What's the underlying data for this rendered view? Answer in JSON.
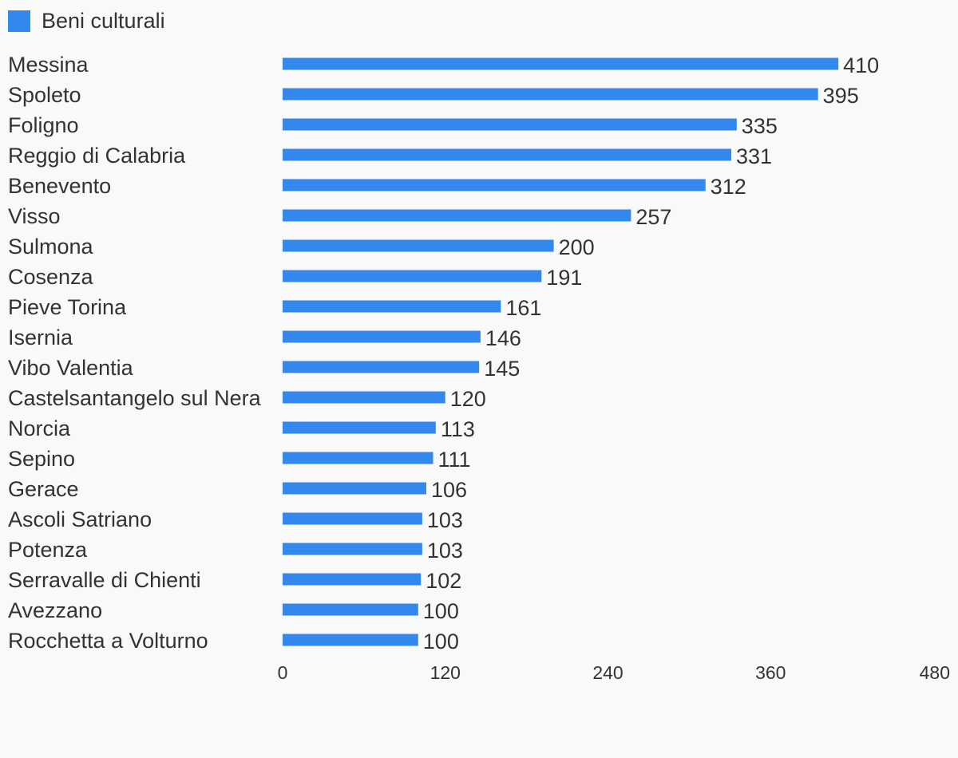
{
  "chart_data": {
    "type": "bar",
    "orientation": "horizontal",
    "categories": [
      "Messina",
      "Spoleto",
      "Foligno",
      "Reggio di Calabria",
      "Benevento",
      "Visso",
      "Sulmona",
      "Cosenza",
      "Pieve Torina",
      "Isernia",
      "Vibo Valentia",
      "Castelsantangelo sul Nera",
      "Norcia",
      "Sepino",
      "Gerace",
      "Ascoli Satriano",
      "Potenza",
      "Serravalle di Chienti",
      "Avezzano",
      "Rocchetta a Volturno"
    ],
    "series": [
      {
        "name": "Beni culturali",
        "color": "#3388ee",
        "values": [
          410,
          395,
          335,
          331,
          312,
          257,
          200,
          191,
          161,
          146,
          145,
          120,
          113,
          111,
          106,
          103,
          103,
          102,
          100,
          100
        ]
      }
    ],
    "x_ticks": [
      "0",
      "120",
      "240",
      "360",
      "480"
    ],
    "xlim": [
      0,
      480
    ],
    "grid": false,
    "legend_position": "top-left"
  }
}
